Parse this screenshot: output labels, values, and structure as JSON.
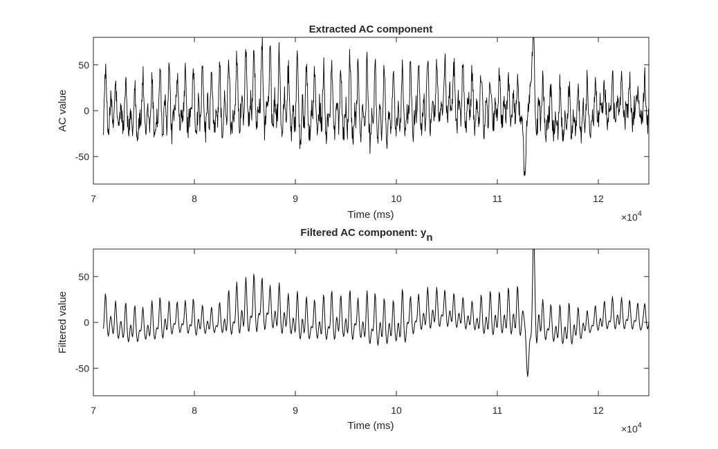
{
  "chart_data": [
    {
      "type": "line",
      "title": "Extracted AC component",
      "xlabel": "Time (ms)",
      "ylabel": "AC value",
      "xlim": [
        7,
        12.5
      ],
      "ylim": [
        -80,
        80
      ],
      "x_ticks": [
        7,
        8,
        9,
        10,
        11,
        12
      ],
      "x_tick_labels": [
        "7",
        "8",
        "9",
        "10",
        "11",
        "12"
      ],
      "y_ticks": [
        -50,
        0,
        50
      ],
      "y_tick_labels": [
        "-50",
        "0",
        "50"
      ],
      "x_exponent": "×10",
      "x_exponent_power": "4",
      "x_range": [
        7.1,
        12.5
      ],
      "color": "#000000",
      "series": [
        {
          "beat_x": [
            7.12,
            7.22,
            7.32,
            7.41,
            7.49,
            7.58,
            7.66,
            7.75,
            7.83,
            7.91,
            7.99,
            8.08,
            8.17,
            8.25,
            8.34,
            8.42,
            8.51,
            8.59,
            8.67,
            8.75,
            8.84,
            8.93,
            9.02,
            9.11,
            9.19,
            9.28,
            9.36,
            9.45,
            9.54,
            9.62,
            9.71,
            9.79,
            9.88,
            9.97,
            10.06,
            10.14,
            10.22,
            10.31,
            10.4,
            10.48,
            10.57,
            10.66,
            10.75,
            10.84,
            10.93,
            11.02,
            11.11,
            11.2,
            11.36,
            11.45,
            11.53,
            11.62,
            11.71,
            11.8,
            11.89,
            11.97,
            12.06,
            12.14,
            12.23,
            12.31,
            12.39,
            12.46
          ],
          "beat_amplitude": [
            45,
            35,
            38,
            42,
            45,
            40,
            50,
            52,
            38,
            42,
            48,
            46,
            45,
            52,
            55,
            58,
            62,
            65,
            63,
            55,
            62,
            45,
            70,
            58,
            52,
            48,
            55,
            45,
            62,
            52,
            60,
            58,
            55,
            52,
            50,
            55,
            48,
            54,
            46,
            48,
            45,
            50,
            40,
            45,
            35,
            42,
            38,
            32,
            72,
            38,
            36,
            42,
            38,
            40,
            35,
            32,
            30,
            38,
            35,
            32,
            28,
            30
          ],
          "events": [
            {
              "x": 11.27,
              "y": -65
            },
            {
              "x": 11.34,
              "y": 72
            }
          ]
        }
      ]
    },
    {
      "type": "line",
      "title": "Filtered AC component: y",
      "title_subscript": "n",
      "xlabel": "Time (ms)",
      "ylabel": "Filtered value",
      "xlim": [
        7,
        12.5
      ],
      "ylim": [
        -80,
        80
      ],
      "x_ticks": [
        7,
        8,
        9,
        10,
        11,
        12
      ],
      "x_tick_labels": [
        "7",
        "8",
        "9",
        "10",
        "11",
        "12"
      ],
      "y_ticks": [
        -50,
        0,
        50
      ],
      "y_tick_labels": [
        "-50",
        "0",
        "50"
      ],
      "x_exponent": "×10",
      "x_exponent_power": "4",
      "x_range": [
        7.1,
        12.5
      ],
      "color": "#000000",
      "series": [
        {
          "beat_x": [
            7.12,
            7.22,
            7.32,
            7.41,
            7.49,
            7.58,
            7.66,
            7.75,
            7.83,
            7.91,
            7.99,
            8.08,
            8.17,
            8.25,
            8.34,
            8.42,
            8.51,
            8.59,
            8.67,
            8.75,
            8.84,
            8.93,
            9.02,
            9.11,
            9.19,
            9.28,
            9.36,
            9.45,
            9.54,
            9.62,
            9.71,
            9.79,
            9.88,
            9.97,
            10.06,
            10.14,
            10.22,
            10.31,
            10.4,
            10.48,
            10.57,
            10.66,
            10.75,
            10.84,
            10.93,
            11.02,
            11.11,
            11.2,
            11.36,
            11.45,
            11.53,
            11.62,
            11.71,
            11.8,
            11.89,
            11.97,
            12.06,
            12.14,
            12.23,
            12.31,
            12.39,
            12.46
          ],
          "beat_amplitude": [
            32,
            28,
            30,
            28,
            25,
            30,
            32,
            26,
            24,
            25,
            28,
            22,
            20,
            24,
            35,
            40,
            42,
            45,
            40,
            32,
            38,
            30,
            36,
            32,
            30,
            35,
            38,
            32,
            38,
            30,
            40,
            40,
            35,
            32,
            42,
            30,
            28,
            32,
            30,
            28,
            26,
            24,
            22,
            30,
            34,
            32,
            36,
            38,
            55,
            30,
            28,
            30,
            32,
            25,
            18,
            20,
            22,
            25,
            24,
            22,
            20,
            19
          ],
          "events": [
            {
              "x": 11.3,
              "y": -55
            },
            {
              "x": 11.36,
              "y": 55
            }
          ]
        }
      ]
    }
  ]
}
